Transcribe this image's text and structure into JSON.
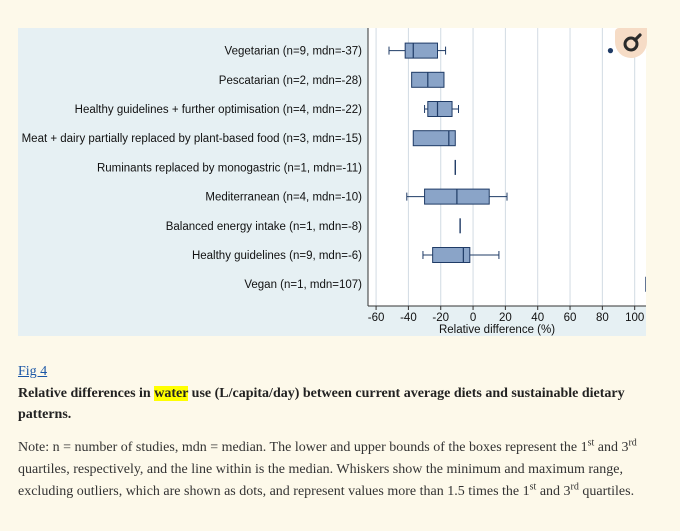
{
  "chart_data": {
    "type": "boxplot",
    "orientation": "horizontal",
    "xlabel": "Relative difference (%)",
    "xlim": [
      -65,
      107
    ],
    "xticks": [
      -60,
      -40,
      -20,
      0,
      20,
      40,
      60,
      80,
      100
    ],
    "vertical_grid": true,
    "box_color": "#8aa4c8",
    "box_edge_color": "#1f3b66",
    "categories": [
      {
        "label": "Vegetarian (n=9, mdn=-37)",
        "whisker_low": -52,
        "q1": -42,
        "median": -37,
        "q3": -22,
        "whisker_high": -17,
        "outliers": [
          85
        ]
      },
      {
        "label": "Pescatarian (n=2, mdn=-28)",
        "whisker_low": null,
        "q1": -38,
        "median": -28,
        "q3": -18,
        "whisker_high": null,
        "outliers": []
      },
      {
        "label": "Healthy guidelines + further optimisation (n=4, mdn=-22)",
        "whisker_low": -30,
        "q1": -28,
        "median": -22,
        "q3": -13,
        "whisker_high": -9,
        "outliers": []
      },
      {
        "label": "Meat + dairy partially replaced by plant-based food (n=3, mdn=-15)",
        "whisker_low": null,
        "q1": -37,
        "median": -15,
        "q3": -11,
        "whisker_high": null,
        "outliers": []
      },
      {
        "label": "Ruminants replaced by monogastric (n=1, mdn=-11)",
        "whisker_low": null,
        "q1": -11,
        "median": -11,
        "q3": -11,
        "whisker_high": null,
        "outliers": []
      },
      {
        "label": "Mediterranean (n=4, mdn=-10)",
        "whisker_low": -41,
        "q1": -30,
        "median": -10,
        "q3": 10,
        "whisker_high": 21,
        "outliers": []
      },
      {
        "label": "Balanced energy intake (n=1, mdn=-8)",
        "whisker_low": null,
        "q1": -8,
        "median": -8,
        "q3": -8,
        "whisker_high": null,
        "outliers": []
      },
      {
        "label": "Healthy guidelines (n=9, mdn=-6)",
        "whisker_low": -31,
        "q1": -25,
        "median": -6,
        "q3": -2,
        "whisker_high": 16,
        "outliers": []
      },
      {
        "label": "Vegan (n=1, mdn=107)",
        "whisker_low": null,
        "q1": 107,
        "median": 107,
        "q3": 107,
        "whisker_high": null,
        "outliers": []
      }
    ]
  },
  "caption": {
    "fig_link": "Fig 4",
    "title_before": "Relative differences in ",
    "title_highlight": "water",
    "title_after": " use (L/capita/day) between current average diets and sustainable dietary patterns.",
    "note_part1": "Note: n = number of studies, mdn = median. The lower and upper bounds of the boxes represent the 1",
    "note_sup1": "st",
    "note_part2": " and 3",
    "note_sup2": "rd",
    "note_part3": " quartiles, respectively, and the line within is the median. Whiskers show the minimum and maximum range, excluding outliers, which are shown as dots, and represent values more than 1.5 times the 1",
    "note_sup3": "st",
    "note_part4": " and 3",
    "note_sup4": "rd",
    "note_part5": " quartiles."
  },
  "zoom_button": {
    "icon": "magnifier-icon",
    "color": "#2a2a2a"
  }
}
